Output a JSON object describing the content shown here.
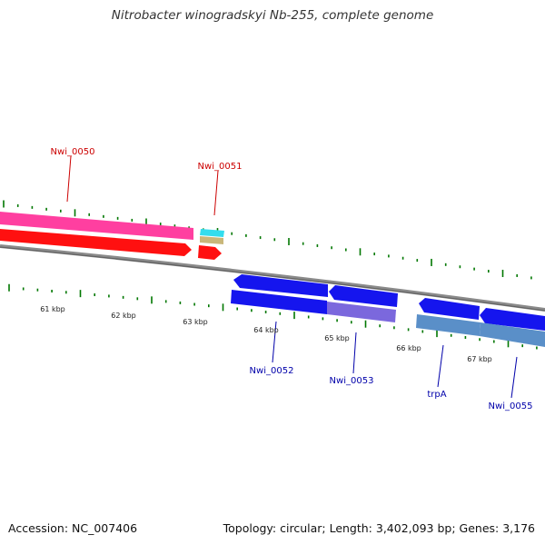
{
  "title": "Nitrobacter winogradskyi Nb-255, complete genome",
  "accession": "Accession: NC_007406",
  "topology": "Topology: circular; Length: 3,402,093 bp; Genes: 3,176",
  "colors": {
    "forward_label": "#cc0000",
    "reverse_label": "#0000aa",
    "tick": "#007700",
    "backbone": "#8a8a8a"
  },
  "kbp_labels": [
    "61 kbp",
    "62 kbp",
    "63 kbp",
    "64 kbp",
    "65 kbp",
    "66 kbp",
    "67 kbp"
  ],
  "genes": [
    {
      "name": "Nwi_0050",
      "strand": "+",
      "colors": [
        "#ff3fa0",
        "#ff1010"
      ]
    },
    {
      "name": "Nwi_0051",
      "strand": "+",
      "colors": [
        "#33ddee",
        "#c9b77a",
        "#ff1010"
      ]
    },
    {
      "name": "Nwi_0052",
      "strand": "-",
      "colors": [
        "#1515ee",
        "#1515ee"
      ]
    },
    {
      "name": "Nwi_0053",
      "strand": "-",
      "colors": [
        "#1515ee",
        "#7b68dd"
      ]
    },
    {
      "name": "trpA",
      "strand": "-",
      "colors": [
        "#1515ee",
        "#5a8fc8"
      ]
    },
    {
      "name": "Nwi_0055",
      "strand": "-",
      "colors": [
        "#1515ee",
        "#5a8fc8"
      ]
    }
  ]
}
